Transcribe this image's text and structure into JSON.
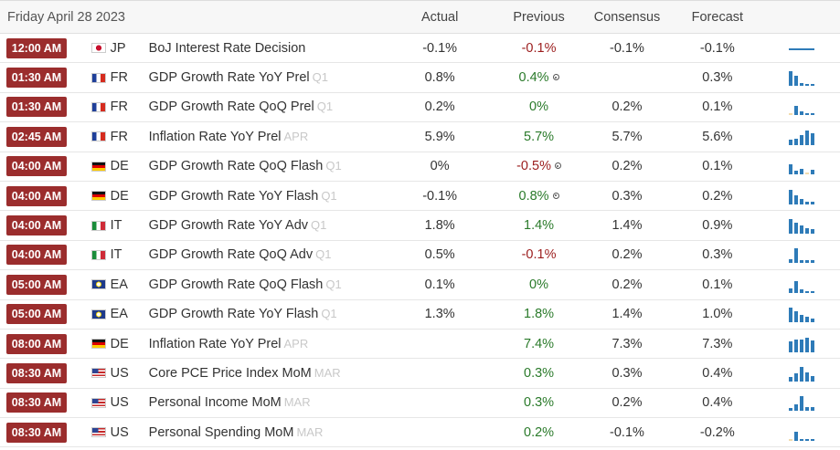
{
  "header": {
    "date": "Friday April 28 2023",
    "actual": "Actual",
    "previous": "Previous",
    "consensus": "Consensus",
    "forecast": "Forecast"
  },
  "colors": {
    "time_badge": "#9b2d2d",
    "spark": "#2e7bb8",
    "spark_pale": "#f2dcae",
    "positive": "#2a7a2a",
    "negative": "#9b1c1c"
  },
  "rows": [
    {
      "time": "12:00 AM",
      "flag": "jp-flag-icon",
      "country": "JP",
      "event": "BoJ Interest Rate Decision",
      "ref": "",
      "actual": "-0.1%",
      "previous": "-0.1%",
      "prev_color": "red",
      "prev_revised": false,
      "consensus": "-0.1%",
      "forecast": "-0.1%",
      "spark": "line"
    },
    {
      "time": "01:30 AM",
      "flag": "fr-flag-icon",
      "country": "FR",
      "event": "GDP Growth Rate YoY Prel",
      "ref": "Q1",
      "actual": "0.8%",
      "previous": "0.4%",
      "prev_color": "green",
      "prev_revised": true,
      "consensus": "",
      "forecast": "0.3%",
      "spark": [
        [
          100,
          0
        ],
        [
          70,
          0
        ],
        [
          20,
          0
        ],
        [
          10,
          0
        ],
        [
          10,
          0
        ]
      ]
    },
    {
      "time": "01:30 AM",
      "flag": "fr-flag-icon",
      "country": "FR",
      "event": "GDP Growth Rate QoQ Prel",
      "ref": "Q1",
      "actual": "0.2%",
      "previous": "0%",
      "prev_color": "green",
      "prev_revised": false,
      "consensus": "0.2%",
      "forecast": "0.1%",
      "spark": [
        [
          15,
          1
        ],
        [
          60,
          0
        ],
        [
          25,
          0
        ],
        [
          15,
          0
        ],
        [
          15,
          0
        ]
      ]
    },
    {
      "time": "02:45 AM",
      "flag": "fr-flag-icon",
      "country": "FR",
      "event": "Inflation Rate YoY Prel",
      "ref": "APR",
      "actual": "5.9%",
      "previous": "5.7%",
      "prev_color": "green",
      "prev_revised": false,
      "consensus": "5.7%",
      "forecast": "5.6%",
      "spark": [
        [
          40,
          0
        ],
        [
          45,
          0
        ],
        [
          70,
          0
        ],
        [
          100,
          0
        ],
        [
          80,
          0
        ]
      ]
    },
    {
      "time": "04:00 AM",
      "flag": "de-flag-icon",
      "country": "DE",
      "event": "GDP Growth Rate QoQ Flash",
      "ref": "Q1",
      "actual": "0%",
      "previous": "-0.5%",
      "prev_color": "red",
      "prev_revised": true,
      "consensus": "0.2%",
      "forecast": "0.1%",
      "spark": [
        [
          70,
          0
        ],
        [
          25,
          0
        ],
        [
          40,
          0
        ],
        [
          15,
          1
        ],
        [
          30,
          0
        ]
      ]
    },
    {
      "time": "04:00 AM",
      "flag": "de-flag-icon",
      "country": "DE",
      "event": "GDP Growth Rate YoY Flash",
      "ref": "Q1",
      "actual": "-0.1%",
      "previous": "0.8%",
      "prev_color": "green",
      "prev_revised": true,
      "consensus": "0.3%",
      "forecast": "0.2%",
      "spark": [
        [
          100,
          0
        ],
        [
          60,
          0
        ],
        [
          35,
          0
        ],
        [
          20,
          0
        ],
        [
          20,
          0
        ]
      ]
    },
    {
      "time": "04:00 AM",
      "flag": "it-flag-icon",
      "country": "IT",
      "event": "GDP Growth Rate YoY Adv",
      "ref": "Q1",
      "actual": "1.8%",
      "previous": "1.4%",
      "prev_color": "green",
      "prev_revised": false,
      "consensus": "1.4%",
      "forecast": "0.9%",
      "spark": [
        [
          100,
          0
        ],
        [
          75,
          0
        ],
        [
          55,
          0
        ],
        [
          35,
          0
        ],
        [
          30,
          0
        ]
      ]
    },
    {
      "time": "04:00 AM",
      "flag": "it-flag-icon",
      "country": "IT",
      "event": "GDP Growth Rate QoQ Adv",
      "ref": "Q1",
      "actual": "0.5%",
      "previous": "-0.1%",
      "prev_color": "red",
      "prev_revised": false,
      "consensus": "0.2%",
      "forecast": "0.3%",
      "spark": [
        [
          25,
          0
        ],
        [
          100,
          0
        ],
        [
          20,
          0
        ],
        [
          20,
          0
        ],
        [
          20,
          0
        ]
      ]
    },
    {
      "time": "05:00 AM",
      "flag": "eu-flag-icon",
      "country": "EA",
      "event": "GDP Growth Rate QoQ Flash",
      "ref": "Q1",
      "actual": "0.1%",
      "previous": "0%",
      "prev_color": "green",
      "prev_revised": false,
      "consensus": "0.2%",
      "forecast": "0.1%",
      "spark": [
        [
          30,
          0
        ],
        [
          80,
          0
        ],
        [
          25,
          0
        ],
        [
          15,
          0
        ],
        [
          15,
          0
        ]
      ]
    },
    {
      "time": "05:00 AM",
      "flag": "eu-flag-icon",
      "country": "EA",
      "event": "GDP Growth Rate YoY Flash",
      "ref": "Q1",
      "actual": "1.3%",
      "previous": "1.8%",
      "prev_color": "green",
      "prev_revised": false,
      "consensus": "1.4%",
      "forecast": "1.0%",
      "spark": [
        [
          100,
          0
        ],
        [
          75,
          0
        ],
        [
          50,
          0
        ],
        [
          35,
          0
        ],
        [
          25,
          0
        ]
      ]
    },
    {
      "time": "08:00 AM",
      "flag": "de-flag-icon",
      "country": "DE",
      "event": "Inflation Rate YoY Prel",
      "ref": "APR",
      "actual": "",
      "previous": "7.4%",
      "prev_color": "green",
      "prev_revised": false,
      "consensus": "7.3%",
      "forecast": "7.3%",
      "spark": [
        [
          75,
          0
        ],
        [
          85,
          0
        ],
        [
          90,
          0
        ],
        [
          100,
          0
        ],
        [
          80,
          0
        ]
      ]
    },
    {
      "time": "08:30 AM",
      "flag": "us-flag-icon",
      "country": "US",
      "event": "Core PCE Price Index MoM",
      "ref": "MAR",
      "actual": "",
      "previous": "0.3%",
      "prev_color": "green",
      "prev_revised": false,
      "consensus": "0.3%",
      "forecast": "0.4%",
      "spark": [
        [
          30,
          0
        ],
        [
          55,
          0
        ],
        [
          100,
          0
        ],
        [
          60,
          0
        ],
        [
          40,
          0
        ]
      ]
    },
    {
      "time": "08:30 AM",
      "flag": "us-flag-icon",
      "country": "US",
      "event": "Personal Income MoM",
      "ref": "MAR",
      "actual": "",
      "previous": "0.3%",
      "prev_color": "green",
      "prev_revised": false,
      "consensus": "0.2%",
      "forecast": "0.4%",
      "spark": [
        [
          20,
          0
        ],
        [
          45,
          0
        ],
        [
          100,
          0
        ],
        [
          25,
          0
        ],
        [
          25,
          0
        ]
      ]
    },
    {
      "time": "08:30 AM",
      "flag": "us-flag-icon",
      "country": "US",
      "event": "Personal Spending MoM",
      "ref": "MAR",
      "actual": "",
      "previous": "0.2%",
      "prev_color": "green",
      "prev_revised": false,
      "consensus": "-0.1%",
      "forecast": "-0.2%",
      "spark": [
        [
          15,
          1
        ],
        [
          60,
          0
        ],
        [
          15,
          0
        ],
        [
          10,
          0
        ],
        [
          10,
          0
        ]
      ]
    }
  ]
}
